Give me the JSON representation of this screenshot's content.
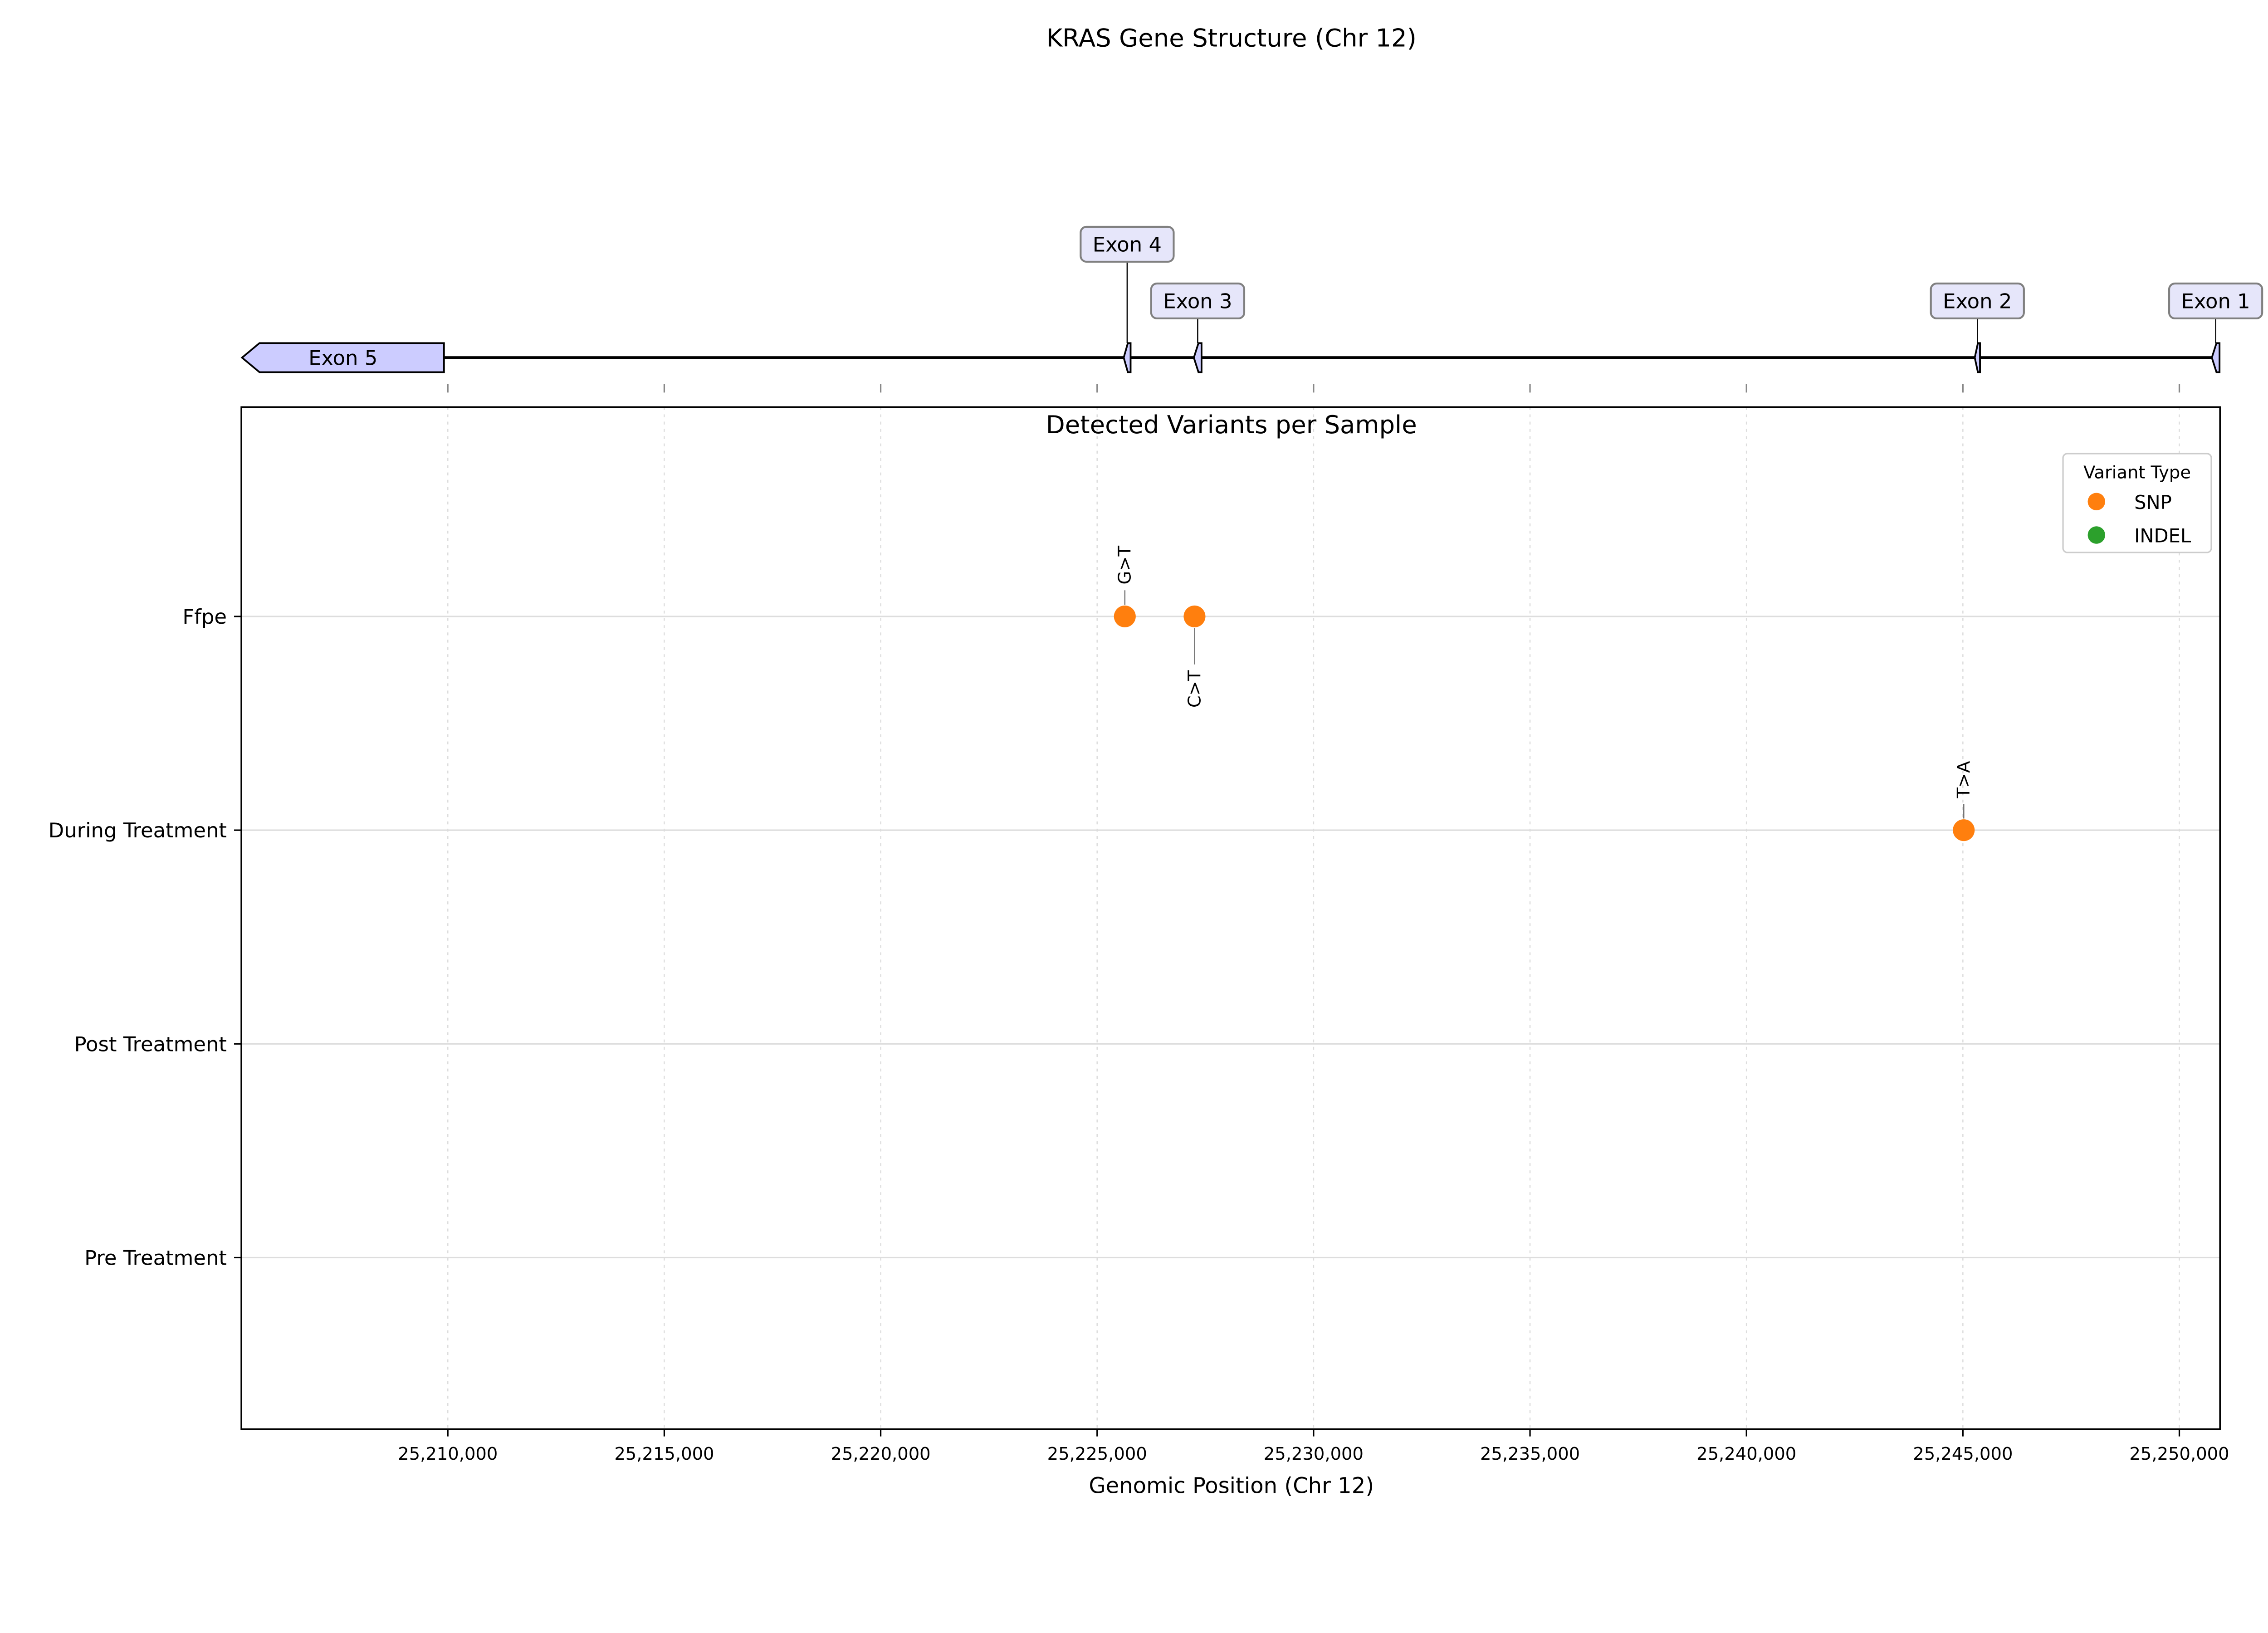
{
  "chart_data": [
    {
      "type": "gene-structure",
      "title": "KRAS Gene Structure (Chr 12)",
      "strand": "-",
      "xlim": [
        25205230,
        25250940
      ],
      "gene": {
        "start": 25205246,
        "end": 25250929
      },
      "exons": [
        {
          "label": "Exon 5",
          "start": 25205246,
          "end": 25209911
        },
        {
          "label": "Exon 4",
          "start": 25225614,
          "end": 25225773
        },
        {
          "label": "Exon 3",
          "start": 25227234,
          "end": 25227412
        },
        {
          "label": "Exon 2",
          "start": 25245274,
          "end": 25245395
        },
        {
          "label": "Exon 1",
          "start": 25250751,
          "end": 25250929
        }
      ],
      "colors": {
        "exon_fill": "#ccccff",
        "label_fill": "#e6e6fa",
        "label_edge": "#808080"
      }
    },
    {
      "type": "scatter",
      "title": "Detected Variants per Sample",
      "xlabel": "Genomic Position (Chr 12)",
      "ylabel": "",
      "xlim": [
        25205230,
        25250940
      ],
      "xticks": [
        25210000,
        25215000,
        25220000,
        25225000,
        25230000,
        25235000,
        25240000,
        25245000,
        25250000
      ],
      "xtick_labels": [
        "25,210,000",
        "25,215,000",
        "25,220,000",
        "25,225,000",
        "25,230,000",
        "25,235,000",
        "25,240,000",
        "25,245,000",
        "25,250,000"
      ],
      "categories": [
        "Pre Treatment",
        "Post Treatment",
        "During Treatment",
        "Ffpe"
      ],
      "grid": true,
      "legend": {
        "title": "Variant Type",
        "placement": "top-right",
        "entries": [
          {
            "label": "SNP",
            "color": "#ff7f0e"
          },
          {
            "label": "INDEL",
            "color": "#2ca02c"
          }
        ]
      },
      "points": [
        {
          "sample": "Ffpe",
          "position": 25225640,
          "type": "SNP",
          "label": "G>T",
          "label_side": "above"
        },
        {
          "sample": "Ffpe",
          "position": 25227250,
          "type": "SNP",
          "label": "C>T",
          "label_side": "below"
        },
        {
          "sample": "During Treatment",
          "position": 25245020,
          "type": "SNP",
          "label": "T>A",
          "label_side": "above"
        }
      ]
    }
  ]
}
